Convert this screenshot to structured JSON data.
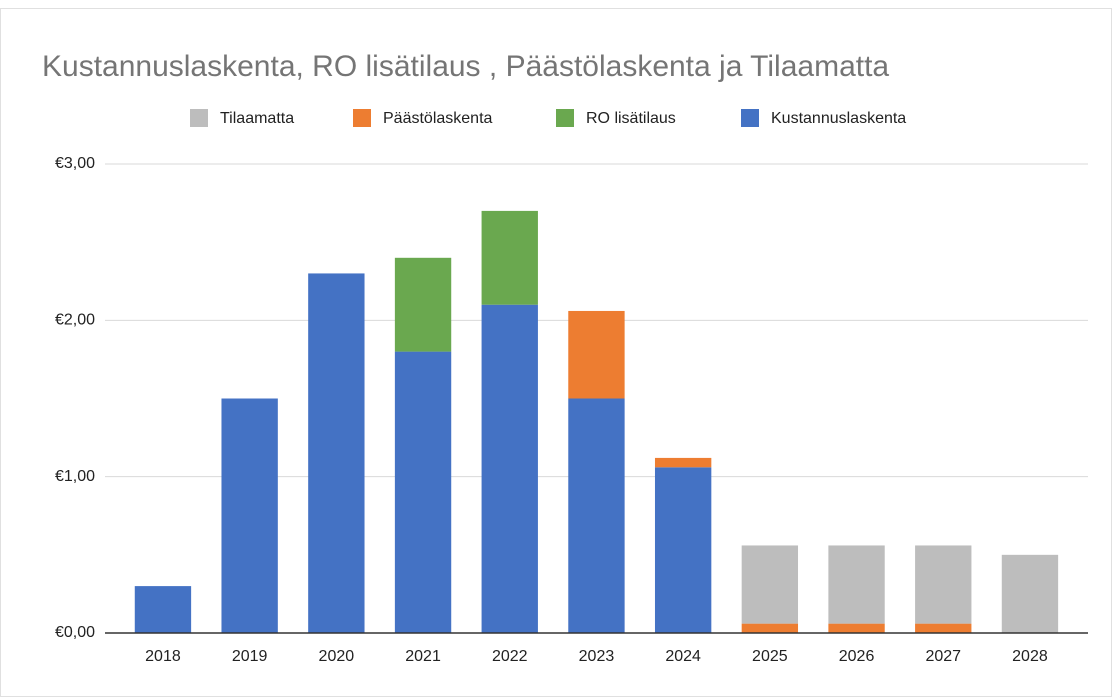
{
  "chart_data": {
    "type": "stacked_bar",
    "title": "Kustannuslaskenta, RO lisätilaus , Päästölaskenta  ja Tilaamatta",
    "categories": [
      "2018",
      "2019",
      "2020",
      "2021",
      "2022",
      "2023",
      "2024",
      "2025",
      "2026",
      "2027",
      "2028"
    ],
    "series": [
      {
        "name": "Tilaamatta",
        "color": "#bdbdbd",
        "values": [
          0,
          0,
          0,
          0,
          0,
          0,
          0,
          0.5,
          0.5,
          0.5,
          0.5
        ]
      },
      {
        "name": "Päästölaskenta",
        "color": "#ed7d31",
        "values": [
          0,
          0,
          0,
          0,
          0,
          0.56,
          0.06,
          0.06,
          0.06,
          0.06,
          0
        ]
      },
      {
        "name": "RO lisätilaus",
        "color": "#6aa84f",
        "values": [
          0,
          0,
          0,
          0.6,
          0.6,
          0,
          0,
          0,
          0,
          0,
          0
        ]
      },
      {
        "name": "Kustannuslaskenta",
        "color": "#4472c4",
        "values": [
          0.3,
          1.5,
          2.3,
          1.8,
          2.1,
          1.5,
          1.06,
          0,
          0,
          0,
          0
        ]
      }
    ],
    "ylim": [
      0,
      3
    ],
    "yticks": [
      {
        "value": 0,
        "label": "€0,00"
      },
      {
        "value": 1,
        "label": "€1,00"
      },
      {
        "value": 2,
        "label": "€2,00"
      },
      {
        "value": 3,
        "label": "€3,00"
      }
    ],
    "grid": true,
    "legend": "top"
  }
}
